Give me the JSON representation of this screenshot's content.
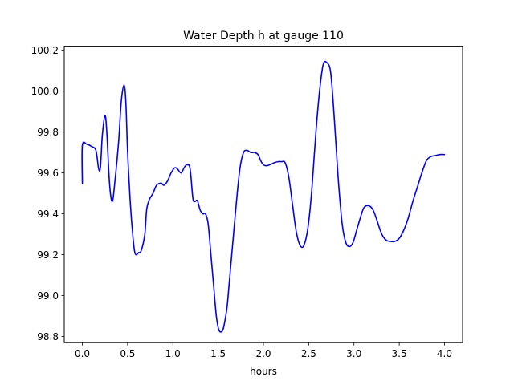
{
  "chart_data": {
    "type": "line",
    "title": "Water Depth h at gauge 110",
    "xlabel": "hours",
    "ylabel": "",
    "xlim": [
      -0.2,
      4.2
    ],
    "ylim": [
      98.77,
      100.22
    ],
    "xticks": [
      0.0,
      0.5,
      1.0,
      1.5,
      2.0,
      2.5,
      3.0,
      3.5,
      4.0
    ],
    "xtick_labels": [
      "0.0",
      "0.5",
      "1.0",
      "1.5",
      "2.0",
      "2.5",
      "3.0",
      "3.5",
      "4.0"
    ],
    "yticks": [
      98.8,
      99.0,
      99.2,
      99.4,
      99.6,
      99.8,
      100.0,
      100.2
    ],
    "ytick_labels": [
      "98.8",
      "99.0",
      "99.2",
      "99.4",
      "99.6",
      "99.8",
      "100.0",
      "100.2"
    ],
    "grid": false,
    "series": [
      {
        "color": "#0000ff",
        "x": [
          0.0,
          0.0,
          0.05,
          0.1,
          0.15,
          0.18,
          0.2,
          0.22,
          0.25,
          0.27,
          0.3,
          0.33,
          0.36,
          0.4,
          0.43,
          0.46,
          0.48,
          0.5,
          0.53,
          0.56,
          0.58,
          0.6,
          0.62,
          0.65,
          0.69,
          0.71,
          0.74,
          0.78,
          0.82,
          0.87,
          0.9,
          0.94,
          0.98,
          1.02,
          1.05,
          1.09,
          1.13,
          1.16,
          1.19,
          1.22,
          1.24,
          1.27,
          1.3,
          1.33,
          1.36,
          1.39,
          1.42,
          1.45,
          1.48,
          1.51,
          1.55,
          1.58,
          1.6,
          1.62,
          1.66,
          1.7,
          1.74,
          1.78,
          1.82,
          1.86,
          1.9,
          1.94,
          1.97,
          2.0,
          2.03,
          2.07,
          2.12,
          2.16,
          2.2,
          2.24,
          2.28,
          2.32,
          2.36,
          2.4,
          2.44,
          2.48,
          2.51,
          2.54,
          2.58,
          2.62,
          2.66,
          2.7,
          2.74,
          2.77,
          2.8,
          2.83,
          2.87,
          2.91,
          2.95,
          2.99,
          3.03,
          3.07,
          3.11,
          3.16,
          3.21,
          3.26,
          3.29,
          3.32,
          3.36,
          3.4,
          3.45,
          3.5,
          3.55,
          3.6,
          3.65,
          3.7,
          3.75,
          3.8,
          3.85,
          3.9,
          3.95,
          4.0
        ],
        "y": [
          99.55,
          99.735,
          99.74,
          99.73,
          99.71,
          99.62,
          99.63,
          99.78,
          99.88,
          99.8,
          99.55,
          99.46,
          99.56,
          99.75,
          99.95,
          100.03,
          99.95,
          99.7,
          99.45,
          99.28,
          99.21,
          99.2,
          99.21,
          99.22,
          99.3,
          99.42,
          99.47,
          99.5,
          99.54,
          99.55,
          99.54,
          99.56,
          99.6,
          99.625,
          99.62,
          99.6,
          99.63,
          99.64,
          99.62,
          99.48,
          99.46,
          99.465,
          99.42,
          99.4,
          99.4,
          99.35,
          99.2,
          99.05,
          98.9,
          98.83,
          98.83,
          98.89,
          98.95,
          99.05,
          99.25,
          99.45,
          99.62,
          99.7,
          99.71,
          99.7,
          99.7,
          99.69,
          99.66,
          99.64,
          99.635,
          99.64,
          99.65,
          99.655,
          99.655,
          99.65,
          99.58,
          99.45,
          99.32,
          99.25,
          99.24,
          99.3,
          99.4,
          99.55,
          99.8,
          100.0,
          100.13,
          100.14,
          100.1,
          99.95,
          99.75,
          99.55,
          99.35,
          99.26,
          99.24,
          99.26,
          99.32,
          99.38,
          99.43,
          99.44,
          99.42,
          99.36,
          99.32,
          99.29,
          99.27,
          99.265,
          99.265,
          99.28,
          99.32,
          99.38,
          99.46,
          99.53,
          99.6,
          99.66,
          99.68,
          99.685,
          99.69,
          99.69
        ]
      }
    ]
  }
}
